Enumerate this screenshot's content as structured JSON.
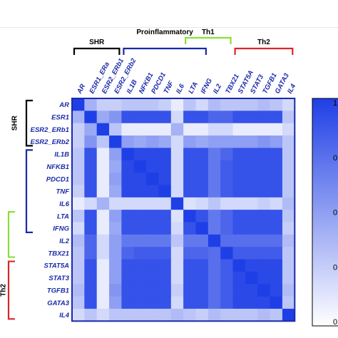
{
  "chart_data": {
    "type": "heatmap",
    "genes": [
      "AR",
      "ESR1",
      "ESR2_ERb1",
      "ESR2_ERb2",
      "IL1B",
      "NFKB1",
      "PDCD1",
      "TNF",
      "IL6",
      "LTA",
      "IFNG",
      "IL2",
      "TBX21",
      "STAT5A",
      "STAT3",
      "TGFB1",
      "GATA3",
      "IL4"
    ],
    "col_labels": [
      "AR",
      "ESR1_ERa",
      "ESR2_ERb1",
      "ESR2_ERb2",
      "IL1B",
      "NFKB1",
      "PDCD1",
      "TNF",
      "IL6",
      "LTA",
      "IFNG",
      "IL2",
      "TBX21",
      "STAT5A",
      "STAT3",
      "TGFB1",
      "GATA3",
      "IL4"
    ],
    "row_labels": [
      "AR",
      "ESR1",
      "ESR2_ERb1",
      "ESR2_ERb2",
      "IL1B",
      "NFKB1",
      "PDCD1",
      "TNF",
      "IL6",
      "LTA",
      "IFNG",
      "IL2",
      "TBX21",
      "STAT5A",
      "STAT3",
      "TGFB1",
      "GATA3",
      "IL4"
    ],
    "values": [
      [
        1.0,
        0.4,
        0.25,
        0.25,
        0.3,
        0.3,
        0.3,
        0.25,
        0.1,
        0.3,
        0.2,
        0.35,
        0.3,
        0.3,
        0.3,
        0.35,
        0.3,
        0.2
      ],
      [
        0.4,
        1.0,
        0.45,
        0.55,
        0.9,
        0.9,
        0.9,
        0.9,
        0.2,
        0.9,
        0.9,
        0.8,
        0.8,
        0.9,
        0.9,
        0.9,
        0.9,
        0.3
      ],
      [
        0.25,
        0.45,
        1.0,
        0.3,
        0.1,
        0.1,
        0.1,
        0.1,
        0.4,
        0.1,
        0.1,
        0.2,
        0.2,
        0.1,
        0.1,
        0.1,
        0.1,
        0.2
      ],
      [
        0.25,
        0.55,
        0.3,
        1.0,
        0.5,
        0.45,
        0.5,
        0.45,
        0.2,
        0.5,
        0.45,
        0.5,
        0.5,
        0.5,
        0.5,
        0.55,
        0.5,
        0.3
      ],
      [
        0.3,
        0.9,
        0.1,
        0.5,
        1.0,
        0.95,
        0.95,
        0.95,
        0.2,
        0.9,
        0.9,
        0.7,
        0.8,
        0.9,
        0.9,
        0.9,
        0.9,
        0.3
      ],
      [
        0.3,
        0.9,
        0.1,
        0.45,
        0.95,
        1.0,
        0.95,
        0.95,
        0.2,
        0.9,
        0.9,
        0.7,
        0.85,
        0.9,
        0.9,
        0.9,
        0.9,
        0.3
      ],
      [
        0.3,
        0.9,
        0.1,
        0.5,
        0.95,
        0.95,
        1.0,
        0.95,
        0.2,
        0.9,
        0.9,
        0.7,
        0.85,
        0.9,
        0.9,
        0.9,
        0.9,
        0.3
      ],
      [
        0.25,
        0.9,
        0.1,
        0.45,
        0.95,
        0.95,
        0.95,
        1.0,
        0.2,
        0.9,
        0.9,
        0.7,
        0.85,
        0.9,
        0.9,
        0.9,
        0.9,
        0.3
      ],
      [
        0.1,
        0.2,
        0.4,
        0.2,
        0.2,
        0.2,
        0.2,
        0.2,
        1.0,
        0.15,
        0.2,
        0.3,
        0.2,
        0.2,
        0.2,
        0.25,
        0.2,
        0.35
      ],
      [
        0.3,
        0.9,
        0.1,
        0.5,
        0.9,
        0.9,
        0.9,
        0.9,
        0.15,
        1.0,
        0.9,
        0.7,
        0.8,
        0.9,
        0.9,
        0.9,
        0.9,
        0.3
      ],
      [
        0.2,
        0.9,
        0.1,
        0.45,
        0.9,
        0.9,
        0.9,
        0.9,
        0.2,
        0.9,
        1.0,
        0.7,
        0.8,
        0.9,
        0.9,
        0.9,
        0.9,
        0.25
      ],
      [
        0.35,
        0.8,
        0.2,
        0.5,
        0.7,
        0.7,
        0.7,
        0.7,
        0.3,
        0.7,
        0.7,
        1.0,
        0.75,
        0.75,
        0.75,
        0.75,
        0.75,
        0.35
      ],
      [
        0.3,
        0.8,
        0.2,
        0.5,
        0.8,
        0.85,
        0.85,
        0.85,
        0.2,
        0.8,
        0.8,
        0.75,
        1.0,
        0.85,
        0.85,
        0.85,
        0.85,
        0.3
      ],
      [
        0.3,
        0.9,
        0.1,
        0.5,
        0.9,
        0.9,
        0.9,
        0.9,
        0.2,
        0.9,
        0.9,
        0.75,
        0.85,
        1.0,
        0.95,
        0.95,
        0.95,
        0.3
      ],
      [
        0.3,
        0.9,
        0.1,
        0.5,
        0.9,
        0.9,
        0.9,
        0.9,
        0.2,
        0.9,
        0.9,
        0.75,
        0.85,
        0.95,
        1.0,
        0.95,
        0.95,
        0.3
      ],
      [
        0.35,
        0.9,
        0.1,
        0.55,
        0.9,
        0.9,
        0.9,
        0.9,
        0.25,
        0.9,
        0.9,
        0.75,
        0.85,
        0.95,
        0.95,
        1.0,
        0.95,
        0.35
      ],
      [
        0.3,
        0.9,
        0.1,
        0.5,
        0.9,
        0.9,
        0.9,
        0.9,
        0.2,
        0.9,
        0.9,
        0.75,
        0.85,
        0.95,
        0.95,
        0.95,
        1.0,
        0.3
      ],
      [
        0.2,
        0.3,
        0.2,
        0.3,
        0.3,
        0.3,
        0.3,
        0.3,
        0.35,
        0.3,
        0.25,
        0.35,
        0.3,
        0.3,
        0.3,
        0.35,
        0.3,
        1.0
      ]
    ],
    "color_scale": {
      "low": "#ffffff",
      "high": "#1f3fe6",
      "range": [
        0,
        1
      ]
    },
    "colorbar_ticks": [
      "1",
      "0",
      "0",
      "0",
      "0"
    ],
    "group_labels": {
      "top": [
        {
          "label": "SHR",
          "start": 0,
          "end": 3,
          "color": "#000000",
          "level": "lower"
        },
        {
          "label": "Proinflammatory",
          "start": 4,
          "end": 10,
          "color": "#1a2aa8",
          "level": "lower"
        },
        {
          "label": "Th1",
          "start": 9,
          "end": 12,
          "color": "#88e03a",
          "level": "upper"
        },
        {
          "label": "Th2",
          "start": 13,
          "end": 17,
          "color": "#d8262e",
          "level": "lower"
        }
      ],
      "left": [
        {
          "label": "SHR",
          "start": 0,
          "end": 3,
          "color": "#000000",
          "level": "inner"
        },
        {
          "label": "",
          "start": 4,
          "end": 10,
          "color": "#1a2aa8",
          "level": "inner"
        },
        {
          "label": "",
          "start": 9,
          "end": 12,
          "color": "#88e03a",
          "level": "outer"
        },
        {
          "label": "Th2",
          "start": 13,
          "end": 17,
          "color": "#d8262e",
          "level": "outer"
        }
      ]
    },
    "label_color": "#1a2aa8",
    "frame_color": "#1a2aa8"
  }
}
